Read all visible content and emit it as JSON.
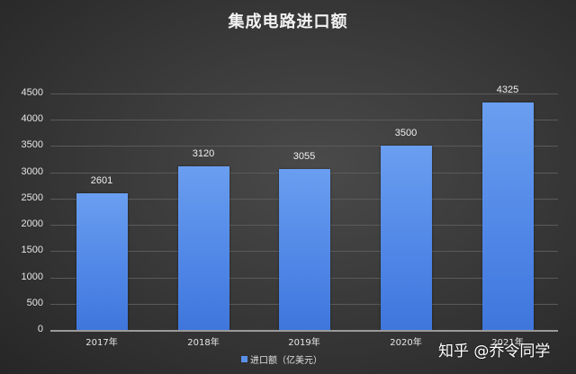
{
  "chart_data": {
    "type": "bar",
    "title": "集成电路进口额",
    "categories": [
      "2017年",
      "2018年",
      "2019年",
      "2020年",
      "2021年"
    ],
    "series": [
      {
        "name": "进口额（亿美元）",
        "values": [
          2601,
          3120,
          3055,
          3500,
          4325
        ],
        "color": "#5a8fe8"
      }
    ],
    "data_labels": [
      "2601",
      "3120",
      "3055",
      "3500",
      "4325"
    ],
    "xlabel": "",
    "ylabel": "",
    "ylim": [
      0,
      4500
    ],
    "yticks": [
      0,
      500,
      1000,
      1500,
      2000,
      2500,
      3000,
      3500,
      4000,
      4500
    ],
    "ytick_labels": [
      "0",
      "500",
      "1000",
      "1500",
      "2000",
      "2500",
      "3000",
      "3500",
      "4000",
      "4500"
    ],
    "grid": true,
    "legend_position": "bottom"
  },
  "legend": {
    "label": "进口额（亿美元）"
  },
  "watermark": {
    "text": "知乎 @乔令同学"
  },
  "colors": {
    "bar": "#5a8fe8",
    "background": "#3a3a3a",
    "text": "#f2f2f2"
  }
}
